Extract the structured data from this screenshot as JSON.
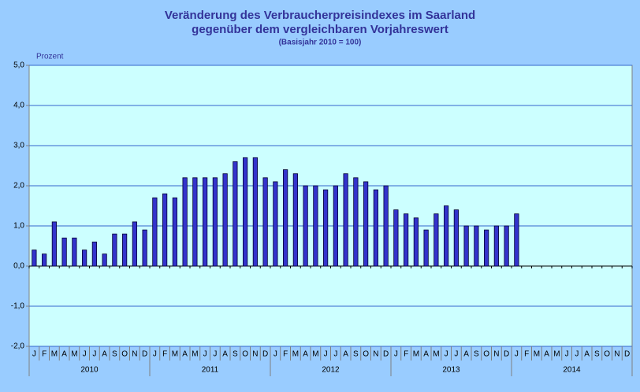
{
  "chart_data": {
    "type": "bar",
    "title": "Veränderung des Verbraucherpreisindexes im Saarland",
    "subtitle": "gegenüber dem vergleichbaren Vorjahreswert",
    "note": "(Basisjahr 2010 = 100)",
    "y_label": "Prozent",
    "categories": [
      "J",
      "F",
      "M",
      "A",
      "M",
      "J",
      "J",
      "A",
      "S",
      "O",
      "N",
      "D",
      "J",
      "F",
      "M",
      "A",
      "M",
      "J",
      "J",
      "A",
      "S",
      "O",
      "N",
      "D",
      "J",
      "F",
      "M",
      "A",
      "M",
      "J",
      "J",
      "A",
      "S",
      "O",
      "N",
      "D",
      "J",
      "F",
      "M",
      "A",
      "M",
      "J",
      "J",
      "A",
      "S",
      "O",
      "N",
      "D",
      "J",
      "F",
      "M",
      "A",
      "M",
      "J",
      "J",
      "A",
      "S",
      "O",
      "N",
      "D"
    ],
    "years": [
      "2010",
      "2011",
      "2012",
      "2013",
      "2014"
    ],
    "values": [
      0.4,
      0.3,
      1.1,
      0.7,
      0.7,
      0.4,
      0.6,
      0.3,
      0.8,
      0.8,
      1.1,
      0.9,
      1.7,
      1.8,
      1.7,
      2.2,
      2.2,
      2.2,
      2.2,
      2.3,
      2.6,
      2.7,
      2.7,
      2.2,
      2.1,
      2.4,
      2.3,
      2.0,
      2.0,
      1.9,
      2.0,
      2.3,
      2.2,
      2.1,
      1.9,
      2.0,
      1.4,
      1.3,
      1.2,
      0.9,
      1.3,
      1.5,
      1.4,
      1.0,
      1.0,
      0.9,
      1.0,
      1.0,
      1.3,
      null,
      null,
      null,
      null,
      null,
      null,
      null,
      null,
      null,
      null,
      null
    ],
    "color": "#3333cc",
    "ylim": [
      -2,
      5
    ],
    "yticks": [
      {
        "value": -2,
        "label": "-2,0"
      },
      {
        "value": -1,
        "label": "-1,0"
      },
      {
        "value": 0,
        "label": "0,0"
      },
      {
        "value": 1,
        "label": "1,0"
      },
      {
        "value": 2,
        "label": "2,0"
      },
      {
        "value": 3,
        "label": "3,0"
      },
      {
        "value": 4,
        "label": "4,0"
      },
      {
        "value": 5,
        "label": "5,0"
      }
    ],
    "grid": true
  }
}
